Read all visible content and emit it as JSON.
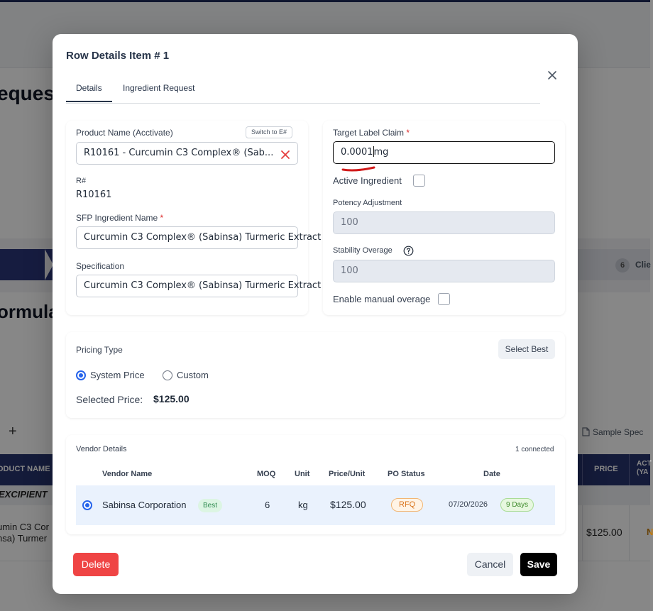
{
  "background": {
    "page_title_fragment": "eques",
    "section_title_fragment": "ormula",
    "stepper_step_number": "6",
    "stepper_step_label": "Clie",
    "add_icon": "plus-icon",
    "sample_spec_label": "Sample Spec",
    "table": {
      "col_product_name": "ODUCT NAME (",
      "col_price": "PRICE",
      "col_actions_line1": "ACT",
      "col_actions_line2": "(YA",
      "group_label": "EXCIPIENT",
      "row_product_line1": "umin C3 Cor",
      "row_product_line2": "nsa) Turmer",
      "row_price": "$125.00",
      "row_flag": "N"
    }
  },
  "modal": {
    "title": "Row Details Item # 1",
    "close_icon": "close-icon",
    "tabs": [
      {
        "label": "Details",
        "active": true
      },
      {
        "label": "Ingredient Request",
        "active": false
      }
    ],
    "left_panel": {
      "product_name_label": "Product Name (Acctivate)",
      "switch_button_label": "Switch to E#",
      "product_name_value": "R10161 - Curcumin C3 Complex® (Sab...",
      "rnum_label": "R#",
      "rnum_value": "R10161",
      "sfp_label": "SFP Ingredient Name",
      "sfp_required": "*",
      "sfp_value": "Curcumin C3 Complex® (Sabinsa) Turmeric Extract",
      "spec_label": "Specification",
      "spec_value": "Curcumin C3 Complex® (Sabinsa) Turmeric Extract"
    },
    "right_panel": {
      "target_label": "Target Label Claim",
      "target_required": "*",
      "target_value": "0.0001",
      "target_unit": "mg",
      "active_ingredient_label": "Active Ingredient",
      "active_ingredient_checked": false,
      "potency_label": "Potency Adjustment",
      "potency_value": "100",
      "stability_label": "Stability Overage",
      "stability_value": "100",
      "manual_overage_label": "Enable manual overage",
      "manual_overage_checked": false
    },
    "pricing": {
      "label": "Pricing Type",
      "select_best_label": "Select Best",
      "options": [
        {
          "label": "System Price",
          "selected": true
        },
        {
          "label": "Custom",
          "selected": false
        }
      ],
      "selected_price_label": "Selected Price:",
      "selected_price_value": "$125.00"
    },
    "vendors": {
      "label": "Vendor Details",
      "connected_text": "1 connected",
      "columns": [
        "Vendor Name",
        "MOQ",
        "Unit",
        "Price/Unit",
        "PO Status",
        "Date"
      ],
      "rows": [
        {
          "selected": true,
          "vendor_name": "Sabinsa Corporation",
          "badge": "Best",
          "moq": "6",
          "unit": "kg",
          "price_unit": "$125.00",
          "po_status": "RFQ",
          "date": "07/20/2026",
          "days": "9 Days"
        }
      ]
    },
    "footer": {
      "delete_label": "Delete",
      "cancel_label": "Cancel",
      "save_label": "Save"
    }
  },
  "colors": {
    "primary_navy": "#27336e",
    "danger_red": "#ef4444",
    "save_black": "#000000",
    "radio_blue": "#2563eb",
    "row_highlight": "#eaf2fd",
    "badge_green_bg": "#dcf5e3",
    "rfq_orange": "#e8872a"
  }
}
